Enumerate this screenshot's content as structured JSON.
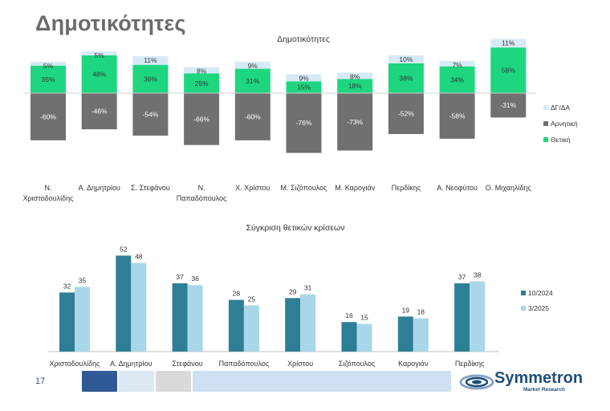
{
  "page": {
    "title": "Δημοτικότητες",
    "page_number": "17"
  },
  "logo": {
    "name": "Symmetron",
    "subtitle": "Market Research"
  },
  "chart_data": [
    {
      "type": "bar",
      "stacked": true,
      "title": "Δημοτικότητες",
      "categories": [
        [
          "Ν.",
          "Χριστοδουλίδης"
        ],
        [
          "Α. Δημητρίου"
        ],
        [
          "Σ. Στεφάνου"
        ],
        [
          "Ν.",
          "Παπαδόπουλος"
        ],
        [
          "Χ. Χρίστου"
        ],
        [
          "Μ. Σιζόπουλος"
        ],
        [
          "Μ. Καρογιάν"
        ],
        [
          "Περδίκης"
        ],
        [
          "Α. Νεοφύτου"
        ],
        [
          "Ο. Μιχαηλίδης"
        ]
      ],
      "series": [
        {
          "name": "ΔΓ/ΔΑ",
          "values": [
            5,
            5,
            11,
            8,
            9,
            9,
            8,
            10,
            7,
            11
          ],
          "labels": [
            "5%",
            "5%",
            "11%",
            "8%",
            "9%",
            "9%",
            "8%",
            "10%",
            "7%",
            "11%"
          ],
          "color": "#d6eaf5"
        },
        {
          "name": "Αρνητική",
          "values": [
            -60,
            -46,
            -54,
            -66,
            -60,
            -76,
            -73,
            -52,
            -58,
            -31
          ],
          "labels": [
            "-60%",
            "-46%",
            "-54%",
            "-66%",
            "-60%",
            "-76%",
            "-73%",
            "-52%",
            "-58%",
            "-31%"
          ],
          "color": "#707070"
        },
        {
          "name": "Θετική",
          "values": [
            35,
            48,
            36,
            25,
            31,
            15,
            18,
            38,
            34,
            58
          ],
          "labels": [
            "35%",
            "48%",
            "36%",
            "25%",
            "31%",
            "15%",
            "18%",
            "38%",
            "34%",
            "58%"
          ],
          "color": "#1ed67f"
        }
      ],
      "legend_position": "right",
      "grid": false
    },
    {
      "type": "bar",
      "title": "Σύγκριση θετικών κρίσεων",
      "categories": [
        "Χριστοδουλίδης",
        "Α. Δημητρίου",
        "Στεφάνου",
        "Παπαδόπουλος",
        "Χρίστου",
        "Σιζόπουλος",
        "Καρογιάν",
        "Περδίκης"
      ],
      "series": [
        {
          "name": "10/2024",
          "values": [
            32,
            52,
            37,
            28,
            29,
            16,
            19,
            37
          ],
          "color": "#2e7f96"
        },
        {
          "name": "3/2025",
          "values": [
            35,
            48,
            36,
            25,
            31,
            15,
            18,
            38
          ],
          "color": "#a9d6e8"
        }
      ],
      "legend_position": "right",
      "grid": false
    }
  ]
}
